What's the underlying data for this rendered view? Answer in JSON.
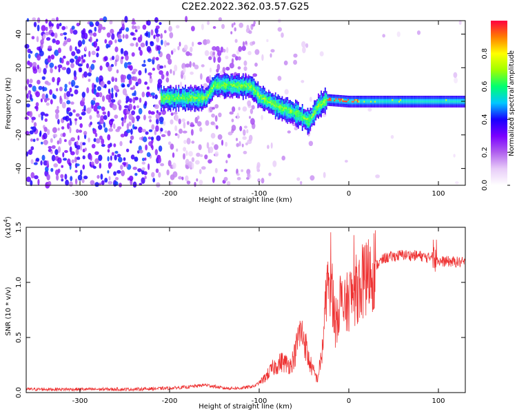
{
  "page_title": "C2E2.2022.362.03.57.G25",
  "chart_data": [
    {
      "type": "heatmap",
      "xlabel": "Height of straight line (km)",
      "ylabel": "Frequency (Hz)",
      "xlim": [
        -360,
        130
      ],
      "ylim": [
        -50,
        48
      ],
      "xticks": [
        -300,
        -200,
        -100,
        0,
        100
      ],
      "yticks": [
        -40,
        -20,
        0,
        20,
        40
      ],
      "colorbar": {
        "label": "Normalized spectral amplitude",
        "range": [
          0,
          1
        ],
        "ticks": [
          "0.0",
          "0.2",
          "0.4",
          "0.6",
          "0.8"
        ],
        "colors": [
          "#ffffff",
          "#e8ccf8",
          "#b060ee",
          "#7a00ff",
          "#1800ff",
          "#00c8ff",
          "#00ff70",
          "#a0ff00",
          "#ffff00",
          "#ff7f00",
          "#ff0040"
        ]
      },
      "ridge": [
        {
          "x": -210,
          "y": 2
        },
        {
          "x": -160,
          "y": 2
        },
        {
          "x": -150,
          "y": 10
        },
        {
          "x": -110,
          "y": 9
        },
        {
          "x": -100,
          "y": 3
        },
        {
          "x": -80,
          "y": -3
        },
        {
          "x": -60,
          "y": -7
        },
        {
          "x": -45,
          "y": -12
        },
        {
          "x": -35,
          "y": -3
        },
        {
          "x": -25,
          "y": 1
        },
        {
          "x": 0,
          "y": 0
        },
        {
          "x": 130,
          "y": 0
        }
      ]
    },
    {
      "type": "line",
      "xlabel": "Height of straight line (km)",
      "ylabel": "SNR (10 * v/v)",
      "multiplier": "(x10",
      "multiplier_exp": "4",
      "multiplier_close": ")",
      "xlim": [
        -360,
        130
      ],
      "ylim": [
        0,
        1.5
      ],
      "xticks": [
        -300,
        -200,
        -100,
        0,
        100
      ],
      "yticks": [
        "0.0",
        "0.5",
        "1.0",
        "1.5"
      ],
      "color": "#ee3333",
      "series": [
        {
          "x": [
            -360,
            -320,
            -280,
            -240,
            -200,
            -180,
            -160,
            -140,
            -120,
            -105,
            -95,
            -85,
            -75,
            -65,
            -60,
            -55,
            -50,
            -45,
            -40,
            -35,
            -30,
            -25,
            -20,
            -15,
            -10,
            -5,
            0,
            10,
            20,
            30,
            40,
            60,
            80,
            90,
            95,
            100,
            110,
            130
          ],
          "y": [
            0.03,
            0.03,
            0.03,
            0.03,
            0.04,
            0.05,
            0.07,
            0.04,
            0.04,
            0.06,
            0.12,
            0.22,
            0.28,
            0.25,
            0.35,
            0.55,
            0.5,
            0.3,
            0.2,
            0.12,
            0.35,
            0.85,
            1.1,
            0.6,
            0.85,
            0.75,
            0.85,
            0.95,
            1.05,
            1.15,
            1.22,
            1.25,
            1.24,
            1.22,
            1.3,
            1.19,
            1.19,
            1.18
          ]
        }
      ]
    }
  ]
}
